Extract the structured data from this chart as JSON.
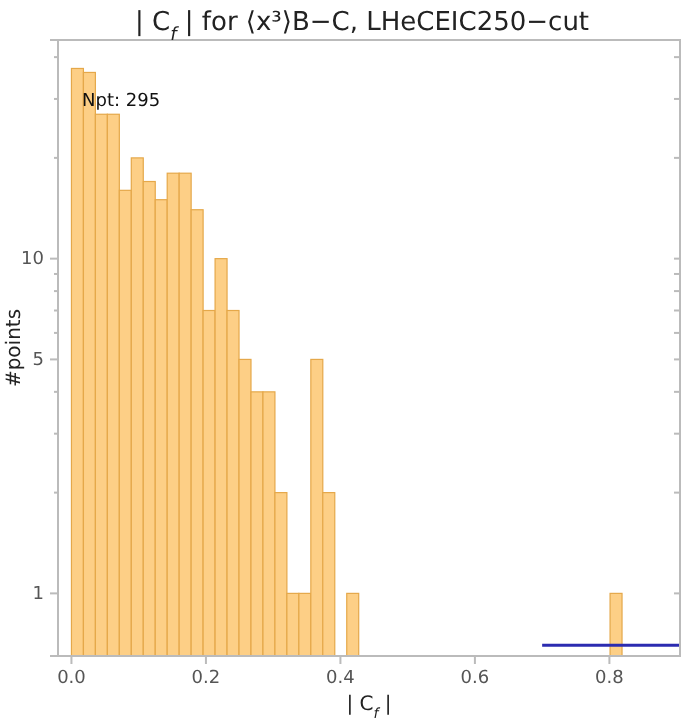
{
  "chart_data": {
    "type": "histogram",
    "title": "| C$_{f}$ | for ⟨x³⟩B−C, LHeCEIC250−cut",
    "xlabel": "| C$_{f}$ |",
    "ylabel": "#points",
    "bins": [
      0,
      0.0178,
      0.0356,
      0.0534,
      0.0712,
      0.089,
      0.1068,
      0.1246,
      0.1424,
      0.1602,
      0.178,
      0.1958,
      0.2136,
      0.2314,
      0.2492,
      0.267,
      0.2848,
      0.3026,
      0.3204,
      0.3382,
      0.356,
      0.3738,
      0.3916,
      0.4094,
      0.4272,
      0.445,
      0.4628,
      0.4806,
      0.4984,
      0.5162,
      0.534,
      0.5518,
      0.5696,
      0.5874,
      0.6052,
      0.623,
      0.6408,
      0.6586,
      0.6764,
      0.6942,
      0.712,
      0.7298,
      0.7476,
      0.7654,
      0.7832,
      0.801,
      0.8188
    ],
    "values": [
      37,
      36,
      27,
      27,
      16,
      20,
      17,
      15,
      18,
      18,
      14,
      7,
      10,
      7,
      5,
      4,
      4,
      2,
      1,
      1,
      5,
      2,
      null,
      1,
      null,
      null,
      null,
      null,
      null,
      null,
      null,
      null,
      null,
      null,
      null,
      null,
      null,
      null,
      null,
      null,
      null,
      null,
      null,
      null,
      null,
      1
    ],
    "color": "#fdcf86",
    "series": [
      {
        "type": "line",
        "x": [
          0.7,
          0.905
        ],
        "values": [
          0.7,
          0.7
        ],
        "color": "#2b2bb0"
      }
    ],
    "log": "y",
    "xlim": [
      -0.02,
      0.905
    ],
    "ylim": [
      0.65,
      45
    ],
    "xticks": [
      {
        "value": 0,
        "label": "0.0"
      },
      {
        "value": 0.2,
        "label": "0.2"
      },
      {
        "value": 0.4,
        "label": "0.4"
      },
      {
        "value": 0.6,
        "label": "0.6"
      },
      {
        "value": 0.8,
        "label": "0.8"
      }
    ],
    "yticks": [
      1,
      {
        "value": 2,
        "label": null
      },
      {
        "value": 3,
        "label": null
      },
      {
        "value": 4,
        "label": null
      },
      5,
      {
        "value": 6,
        "label": null
      },
      {
        "value": 7,
        "label": null
      },
      {
        "value": 8,
        "label": null
      },
      {
        "value": 9,
        "label": null
      },
      10,
      {
        "value": 20,
        "label": null
      },
      {
        "value": 30,
        "label": null
      },
      {
        "value": 40,
        "label": null
      }
    ],
    "annotations": [
      "Npt: 295"
    ]
  }
}
